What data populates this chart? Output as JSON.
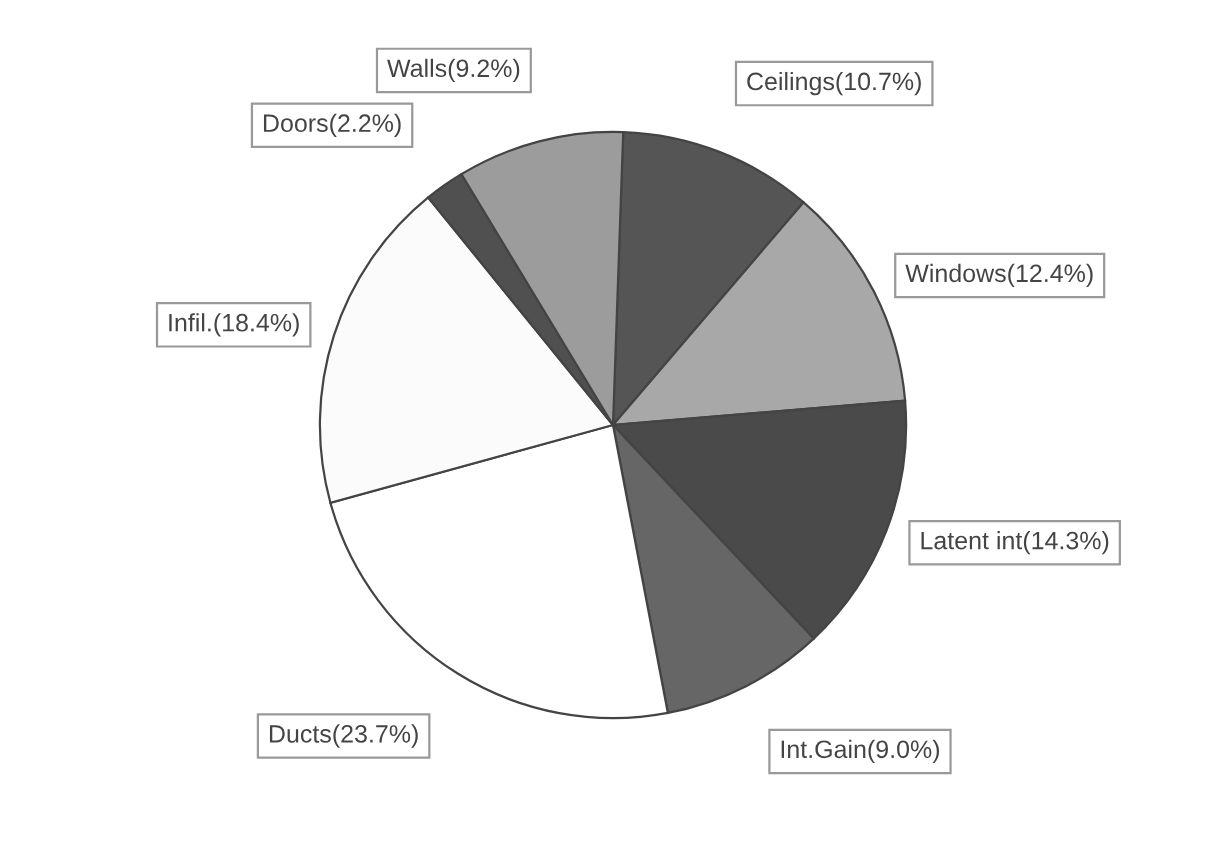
{
  "chart_data": {
    "type": "pie",
    "categories": [
      "Ceilings(10.7%)",
      "Windows(12.4%)",
      "Latent int(14.3%)",
      "Int.Gain(9.0%)",
      "Ducts(23.7%)",
      "Infil.(18.4%)",
      "Doors(2.2%)",
      "Walls(9.2%)"
    ],
    "values": [
      10.7,
      12.4,
      14.3,
      9.0,
      23.7,
      18.4,
      2.2,
      9.2
    ],
    "colors": [
      "#555555",
      "#a8a8a8",
      "#4a4a4a",
      "#666666",
      "#ffffff",
      "#fbfbfb",
      "#505050",
      "#9c9c9c"
    ],
    "legend": false
  }
}
